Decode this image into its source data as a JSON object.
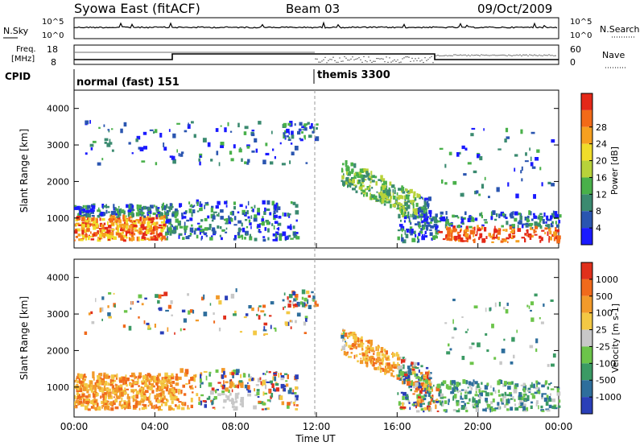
{
  "header": {
    "title": "Syowa East (fitACF)",
    "beam": "Beam 03",
    "date": "09/Oct/2009"
  },
  "noise_panel": {
    "left_label": "N.Sky",
    "right_label": "N.Search",
    "left_ticks": [
      "10^5",
      "10^0"
    ],
    "right_ticks": [
      "10^5",
      "10^0"
    ]
  },
  "freq_panel": {
    "left_label_1": "Freq.",
    "left_label_2": "[MHz]",
    "right_label": "Nave",
    "left_ticks": [
      "18",
      "8"
    ],
    "right_ticks": [
      "60",
      "0"
    ]
  },
  "cpid_panel": {
    "label": "CPID",
    "mode1": "normal (fast) 151",
    "mode2": "themis 3300"
  },
  "chart_data": [
    {
      "type": "heatmap",
      "title": "",
      "ylabel": "Slant Range [km]",
      "yticks": [
        "1000",
        "2000",
        "3000",
        "4000"
      ],
      "ylim": [
        180,
        4500
      ],
      "xlim": [
        0,
        24
      ],
      "colorbar_label": "Power [dB]",
      "colorbar_ticks": [
        "4",
        "8",
        "12",
        "16",
        "20",
        "24",
        "28"
      ],
      "colorscale": [
        "#1a1aff",
        "#2a55b0",
        "#3b8a70",
        "#49b04a",
        "#b8d23a",
        "#f0dc2a",
        "#f6a020",
        "#f26a18",
        "#e42818"
      ]
    },
    {
      "type": "heatmap",
      "title": "",
      "ylabel": "Slant Range [km]",
      "yticks": [
        "1000",
        "2000",
        "3000",
        "4000"
      ],
      "ylim": [
        180,
        4500
      ],
      "xlim": [
        0,
        24
      ],
      "xlabel": "Time UT",
      "xticks": [
        "00:00",
        "04:00",
        "08:00",
        "12:00",
        "16:00",
        "20:00",
        "00:00"
      ],
      "colorbar_label": "Velocity [m s-1]",
      "colorbar_ticks": [
        "1000",
        "500",
        "100",
        "25",
        "-25",
        "-100",
        "-500",
        "-1000"
      ],
      "colorscale": [
        "#2a3fb8",
        "#2e6e9c",
        "#3b9a64",
        "#6cc44a",
        "#c8c8c8",
        "#f3c844",
        "#f29a2a",
        "#f06a1c",
        "#e0301c"
      ]
    }
  ]
}
